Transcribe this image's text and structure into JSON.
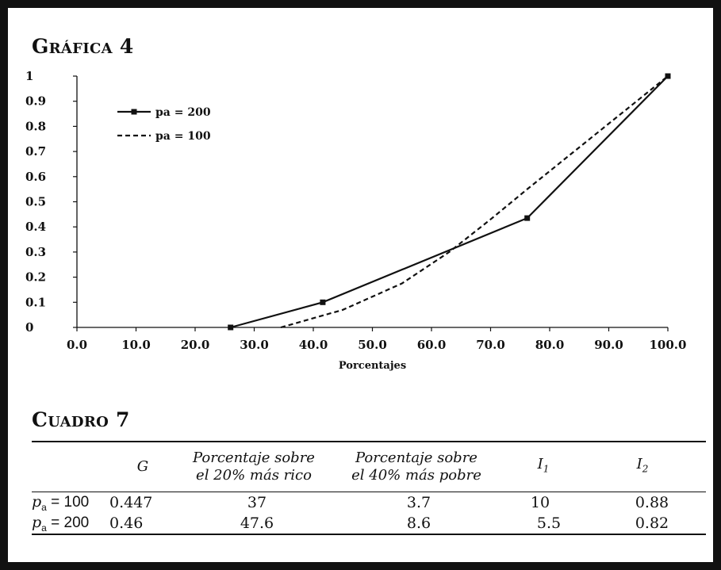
{
  "figure_title": "Gráfica 4",
  "chart_data": {
    "type": "line",
    "title": "Gráfica 4",
    "xlabel": "Porcentajes",
    "ylabel": "",
    "xlim": [
      0,
      100
    ],
    "ylim": [
      0,
      1
    ],
    "x_ticks": [
      "0.0",
      "10.0",
      "20.0",
      "30.0",
      "40.0",
      "50.0",
      "60.0",
      "70.0",
      "80.0",
      "90.0",
      "100.0"
    ],
    "y_ticks": [
      "0",
      "0.1",
      "0.2",
      "0.3",
      "0.4",
      "0.5",
      "0.6",
      "0.7",
      "0.8",
      "0.9",
      "1"
    ],
    "grid": false,
    "legend_position": "top-left",
    "series": [
      {
        "name": "pa = 200",
        "style": "solid",
        "marker": "square",
        "color": "#111111",
        "points": [
          [
            26,
            0
          ],
          [
            41.6,
            0.1
          ],
          [
            76.2,
            0.435
          ],
          [
            100,
            1
          ]
        ]
      },
      {
        "name": "pa = 100",
        "style": "dashed",
        "marker": "none",
        "color": "#111111",
        "points": [
          [
            34.5,
            0
          ],
          [
            45,
            0.07
          ],
          [
            55,
            0.175
          ],
          [
            63,
            0.3
          ],
          [
            70,
            0.43
          ],
          [
            76.2,
            0.55
          ],
          [
            100,
            1
          ]
        ]
      }
    ]
  },
  "table": {
    "title": "Cuadro 7",
    "headers": {
      "g": "G",
      "rico": [
        "Porcentaje sobre",
        "el 20% más rico"
      ],
      "pobre": [
        "Porcentaje sobre",
        "el 40% más pobre"
      ],
      "i1": {
        "base": "I",
        "sub": "1"
      },
      "i2": {
        "base": "I",
        "sub": "2"
      }
    },
    "rows": [
      {
        "label": {
          "var": "p",
          "sub": "a",
          "rest": " = 100"
        },
        "g": "0.447",
        "rico": "37",
        "pobre": "3.7",
        "i1": "10",
        "i2": "0.88"
      },
      {
        "label": {
          "var": "p",
          "sub": "a",
          "rest": " = 200"
        },
        "g": "0.46",
        "rico": "47.6",
        "pobre": "8.6",
        "i1": "5.5",
        "i2": "0.82"
      }
    ]
  }
}
